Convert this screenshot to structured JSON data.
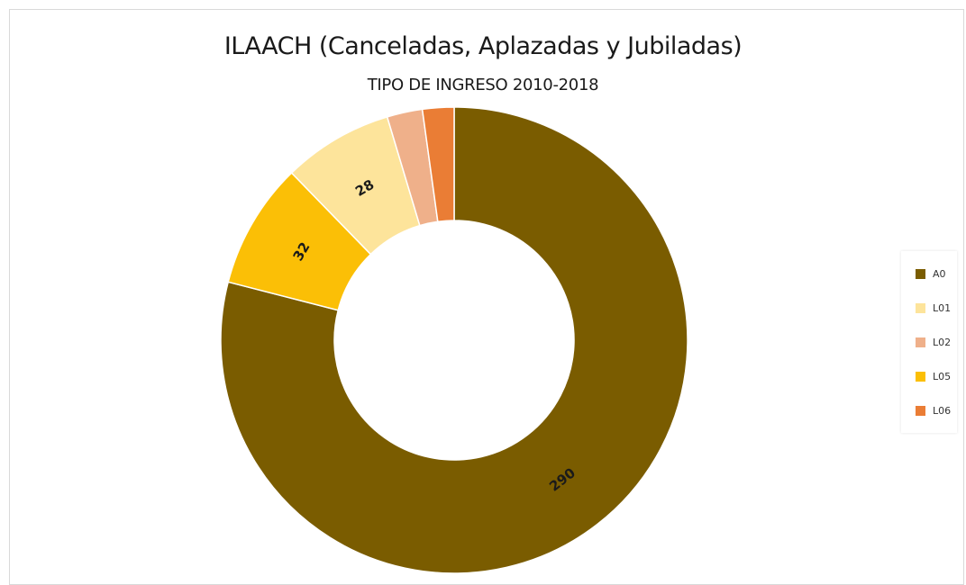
{
  "chart_data": {
    "type": "pie",
    "variant": "donut",
    "title": "ILAACH (Canceladas, Aplazadas y Jubiladas)",
    "subtitle": "TIPO DE INGRESO 2010-2018",
    "legend_position": "right",
    "slices": [
      {
        "label": "A0",
        "value": 290,
        "color": "#7a5c00",
        "data_label": "290"
      },
      {
        "label": "L05",
        "value": 32,
        "color": "#fbbf06",
        "data_label": "32"
      },
      {
        "label": "L01",
        "value": 28,
        "color": "#fde49b",
        "data_label": "28"
      },
      {
        "label": "L02",
        "value": 9,
        "color": "#efb08a",
        "data_label": ""
      },
      {
        "label": "L06",
        "value": 8,
        "color": "#ea7d35",
        "data_label": ""
      }
    ],
    "legend_order": [
      "A0",
      "L01",
      "L02",
      "L05",
      "L06"
    ]
  }
}
